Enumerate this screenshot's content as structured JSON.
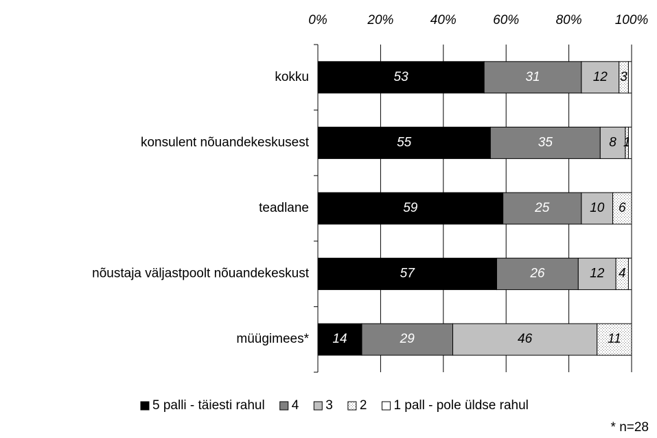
{
  "chart_data": {
    "type": "stacked-barh",
    "categories": [
      "kokku",
      "konsulent nõuandekeskusest",
      "teadlane",
      "nõustaja väljastpoolt nõuandekeskust",
      "müügimees*"
    ],
    "series": [
      {
        "name": "5 palli - täiesti rahul",
        "color": "#000000",
        "label_color": "#ffffff",
        "values": [
          53,
          55,
          59,
          57,
          14
        ]
      },
      {
        "name": "4",
        "color": "#808080",
        "label_color": "#ffffff",
        "values": [
          31,
          35,
          25,
          26,
          29
        ]
      },
      {
        "name": "3",
        "color": "#c0c0c0",
        "label_color": "#000000",
        "values": [
          12,
          8,
          10,
          12,
          46
        ]
      },
      {
        "name": "2",
        "color": "#ffffff",
        "pattern": "dots",
        "label_color": "#000000",
        "values": [
          3,
          1,
          6,
          4,
          11
        ]
      },
      {
        "name": "1 pall - pole üldse rahul",
        "color": "#ffffff",
        "label_color": "#000000",
        "values": [
          1,
          1,
          0,
          1,
          0
        ],
        "value_labels": [
          null,
          null,
          null,
          null,
          null
        ]
      }
    ],
    "xlim": [
      0,
      100
    ],
    "xticks": [
      {
        "value": 0,
        "label": "0%"
      },
      {
        "value": 20,
        "label": "20%"
      },
      {
        "value": 40,
        "label": "40%"
      },
      {
        "value": 60,
        "label": "60%"
      },
      {
        "value": 80,
        "label": "80%"
      },
      {
        "value": 100,
        "label": "100%"
      }
    ],
    "grid": true,
    "legend": "bottom",
    "footnote": "* n=28"
  }
}
